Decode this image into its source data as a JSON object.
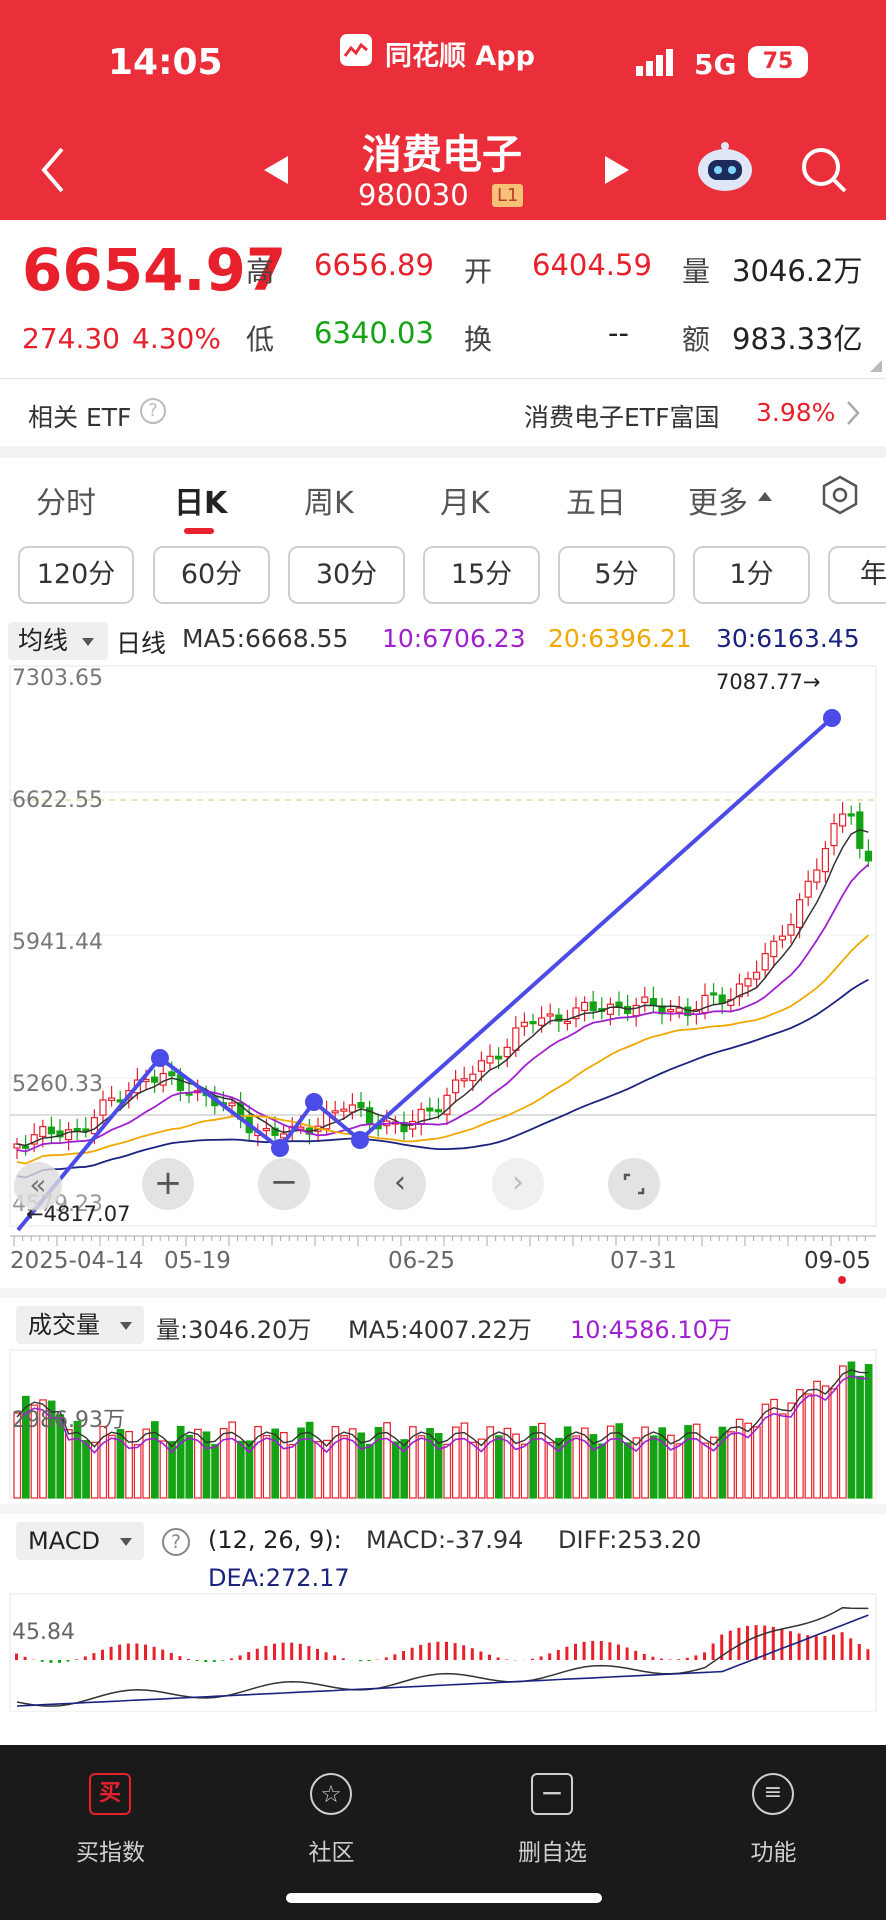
{
  "status_bar": {
    "time": "14:05",
    "app_name": "同花顺 App",
    "network": "5G",
    "battery": "75"
  },
  "header": {
    "title": "消费电子",
    "code": "980030",
    "level_badge": "L1"
  },
  "quote": {
    "price": "6654.97",
    "change": "274.30",
    "change_pct": "4.30%",
    "high_label": "高",
    "high": "6656.89",
    "open_label": "开",
    "open": "6404.59",
    "volume_label": "量",
    "volume": "3046.2万",
    "low_label": "低",
    "low": "6340.03",
    "turnover_label": "换",
    "turnover": "--",
    "amount_label": "额",
    "amount": "983.33亿"
  },
  "etf": {
    "label": "相关 ETF",
    "name": "消费电子ETF富国",
    "pct": "3.98%"
  },
  "period_tabs": [
    "分时",
    "日K",
    "周K",
    "月K",
    "五日",
    "更多"
  ],
  "minute_pills": [
    "120分",
    "60分",
    "30分",
    "15分",
    "5分",
    "1分",
    "年"
  ],
  "kline": {
    "indicator_dropdown": "均线",
    "line_label": "日线",
    "ma5": "MA5:6668.55",
    "ma10": "10:6706.23",
    "ma20": "20:6396.21",
    "ma30": "30:6163.45",
    "y_labels": [
      "7303.65",
      "6622.55",
      "5941.44",
      "5260.33",
      "4579.23"
    ],
    "max_annotation": "7087.77→",
    "min_annotation": "←4817.07",
    "x_labels": [
      "2025-04-14",
      "05-19",
      "06-25",
      "07-31",
      "09-05"
    ]
  },
  "volume": {
    "dropdown": "成交量",
    "value": "量:3046.20万",
    "ma5": "MA5:4007.22万",
    "ma10": "10:4586.10万",
    "y_label": "2986.93万"
  },
  "macd": {
    "dropdown": "MACD",
    "params": "(12, 26, 9):",
    "macd": "MACD:-37.94",
    "diff": "DIFF:253.20",
    "dea": "DEA:272.17",
    "y_label": "45.84"
  },
  "tab_bar": [
    {
      "label": "买指数",
      "icon": "buy-icon"
    },
    {
      "label": "社区",
      "icon": "community-icon"
    },
    {
      "label": "删自选",
      "icon": "remove-watchlist-icon"
    },
    {
      "label": "功能",
      "icon": "menu-icon"
    }
  ],
  "colors": {
    "header_red": "#ea2e3a",
    "up_red": "#e8202c",
    "down_green": "#14a314",
    "ma10_purple": "#a020d0",
    "ma20_orange": "#f0a800",
    "ma30_navy": "#1a237e"
  }
}
